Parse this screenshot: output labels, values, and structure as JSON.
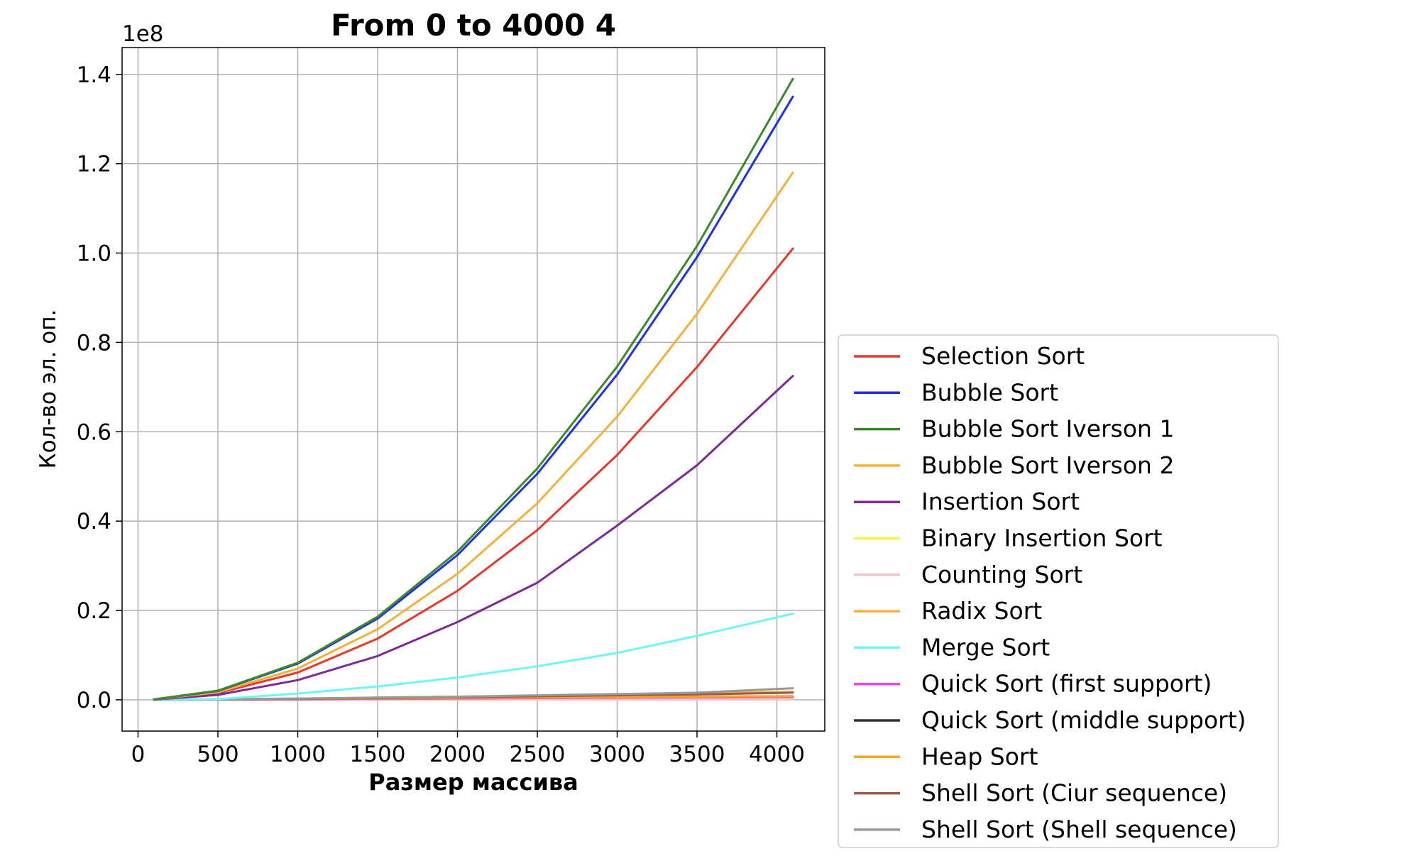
{
  "chart_data": {
    "type": "line",
    "title": "From 0 to 4000 4",
    "xlabel": "Размер массива",
    "ylabel": "Кол-во эл. оп.",
    "y_offset_label": "1e8",
    "xlim": [
      -100,
      4300
    ],
    "ylim": [
      -0.07,
      1.46
    ],
    "xticks": [
      0,
      500,
      1000,
      1500,
      2000,
      2500,
      3000,
      3500,
      4000
    ],
    "yticks": [
      0.0,
      0.2,
      0.4,
      0.6,
      0.8,
      1.0,
      1.2,
      1.4
    ],
    "ytick_labels": [
      "0.0",
      "0.2",
      "0.4",
      "0.6",
      "0.8",
      "1.0",
      "1.2",
      "1.4"
    ],
    "grid": true,
    "legend_position": "outside-right",
    "x": [
      100,
      500,
      1000,
      1500,
      2000,
      2500,
      3000,
      3500,
      4100
    ],
    "series": [
      {
        "name": "Selection Sort",
        "color": "#e8382b",
        "values": [
          0.0006,
          0.015,
          0.061,
          0.137,
          0.244,
          0.38,
          0.548,
          0.745,
          1.01
        ]
      },
      {
        "name": "Bubble Sort",
        "color": "#1f2ef5",
        "values": [
          0.0008,
          0.02,
          0.081,
          0.182,
          0.324,
          0.506,
          0.728,
          0.991,
          1.35
        ]
      },
      {
        "name": "Bubble Sort Iverson 1",
        "color": "#3a8a2a",
        "values": [
          0.0008,
          0.0205,
          0.083,
          0.186,
          0.332,
          0.518,
          0.746,
          1.016,
          1.39
        ]
      },
      {
        "name": "Bubble Sort Iverson 2",
        "color": "#f5b03a",
        "values": [
          0.0007,
          0.017,
          0.07,
          0.158,
          0.282,
          0.44,
          0.634,
          0.864,
          1.18
        ]
      },
      {
        "name": "Insertion Sort",
        "color": "#7e2b96",
        "values": [
          0.0004,
          0.011,
          0.044,
          0.098,
          0.174,
          0.262,
          0.39,
          0.525,
          0.725
        ]
      },
      {
        "name": "Binary Insertion Sort",
        "color": "#f5f542",
        "values": [
          0.0,
          0.0003,
          0.0007,
          0.0011,
          0.0016,
          0.002,
          0.0025,
          0.003,
          0.0035
        ]
      },
      {
        "name": "Counting Sort",
        "color": "#f5bfc8",
        "values": [
          0.0,
          0.0001,
          0.0002,
          0.0003,
          0.0004,
          0.0005,
          0.0006,
          0.0007,
          0.0008
        ]
      },
      {
        "name": "Radix Sort",
        "color": "#f5b03a",
        "values": [
          0.0,
          0.001,
          0.003,
          0.005,
          0.007,
          0.009,
          0.012,
          0.015,
          0.018
        ]
      },
      {
        "name": "Merge Sort",
        "color": "#6ff5f5",
        "values": [
          0.0002,
          0.0015,
          0.014,
          0.03,
          0.05,
          0.075,
          0.105,
          0.143,
          0.193
        ]
      },
      {
        "name": "Quick Sort (first support)",
        "color": "#f542f5",
        "values": [
          0.0,
          0.0005,
          0.0012,
          0.002,
          0.003,
          0.0038,
          0.0046,
          0.0055,
          0.0065
        ]
      },
      {
        "name": "Quick Sort (middle support)",
        "color": "#333333",
        "values": [
          0.0,
          0.0008,
          0.0018,
          0.003,
          0.004,
          0.005,
          0.006,
          0.007,
          0.008
        ]
      },
      {
        "name": "Heap Sort",
        "color": "#f5a623",
        "values": [
          0.0,
          0.001,
          0.002,
          0.003,
          0.004,
          0.005,
          0.006,
          0.007,
          0.008
        ]
      },
      {
        "name": "Shell Sort (Ciur sequence)",
        "color": "#a05a4a",
        "values": [
          0.0,
          0.0008,
          0.002,
          0.004,
          0.006,
          0.008,
          0.01,
          0.012,
          0.016
        ]
      },
      {
        "name": "Shell Sort (Shell sequence)",
        "color": "#999999",
        "values": [
          0.0,
          0.001,
          0.003,
          0.005,
          0.007,
          0.01,
          0.013,
          0.016,
          0.026
        ]
      }
    ]
  }
}
